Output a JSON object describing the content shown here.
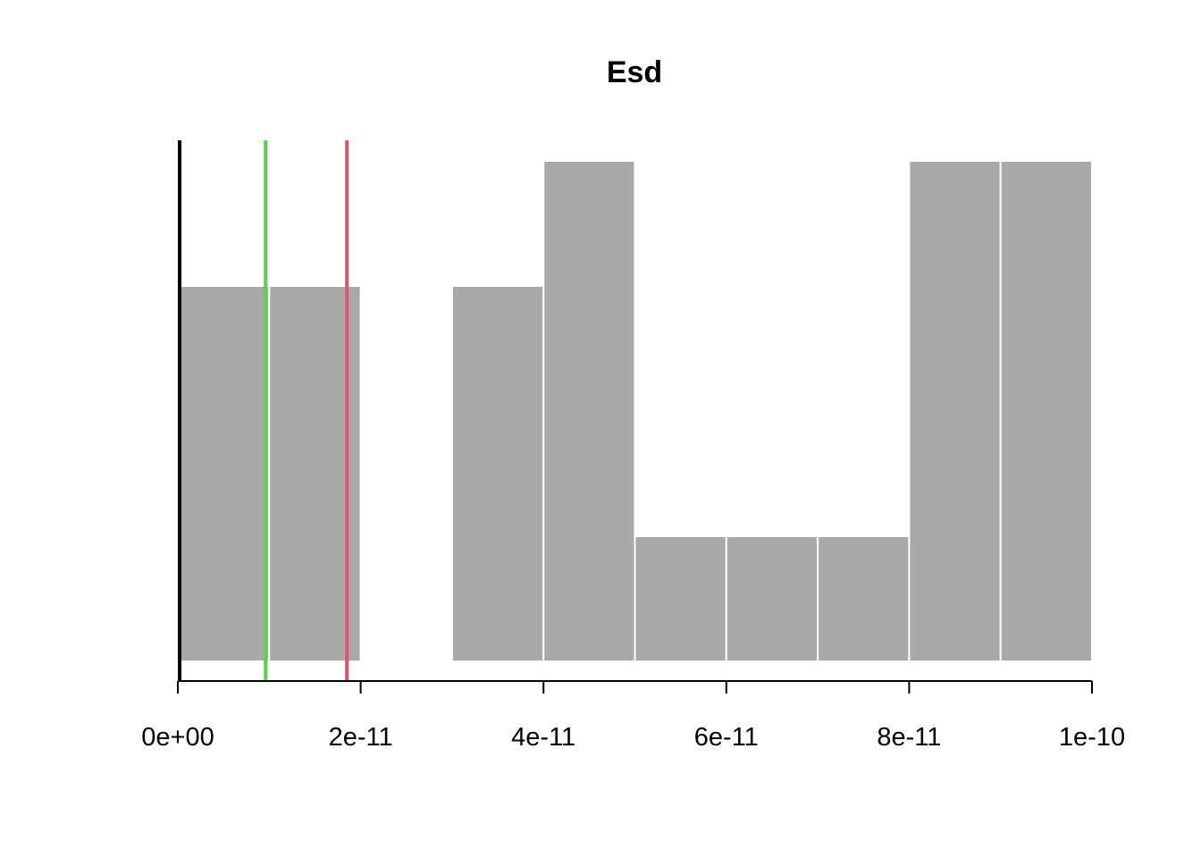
{
  "chart_data": {
    "type": "bar",
    "title": "Esd",
    "xlabel": "",
    "ylabel": "",
    "bins": [
      {
        "start": 0,
        "end": 1e-11,
        "count": 3
      },
      {
        "start": 1e-11,
        "end": 2e-11,
        "count": 3
      },
      {
        "start": 2e-11,
        "end": 3e-11,
        "count": 0
      },
      {
        "start": 3e-11,
        "end": 4e-11,
        "count": 3
      },
      {
        "start": 4e-11,
        "end": 5e-11,
        "count": 4
      },
      {
        "start": 5e-11,
        "end": 6e-11,
        "count": 1
      },
      {
        "start": 6e-11,
        "end": 7e-11,
        "count": 1
      },
      {
        "start": 7e-11,
        "end": 8e-11,
        "count": 1
      },
      {
        "start": 8e-11,
        "end": 9e-11,
        "count": 4
      },
      {
        "start": 9e-11,
        "end": 1e-10,
        "count": 4
      }
    ],
    "xlim": [
      0,
      1e-10
    ],
    "ylim": [
      0,
      4
    ],
    "x_ticks": [
      {
        "value": 0,
        "label": "0e+00"
      },
      {
        "value": 2e-11,
        "label": "2e-11"
      },
      {
        "value": 4e-11,
        "label": "4e-11"
      },
      {
        "value": 6e-11,
        "label": "6e-11"
      },
      {
        "value": 8e-11,
        "label": "8e-11"
      },
      {
        "value": 1e-10,
        "label": "1e-10"
      }
    ],
    "vertical_lines": [
      {
        "x": 2e-13,
        "color": "#000000"
      },
      {
        "x": 9.6e-12,
        "color": "#61D04F"
      },
      {
        "x": 1.85e-11,
        "color": "#DF536B"
      }
    ],
    "bar_color": "#A9A9A9",
    "bar_border": "#FFFFFF",
    "grid": false,
    "y_axis_shown": false
  }
}
